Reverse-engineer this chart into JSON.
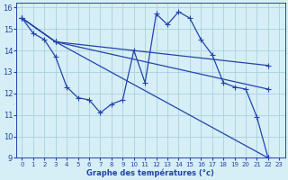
{
  "xlabel": "Graphe des températures (°c)",
  "xlim": [
    -0.5,
    23.5
  ],
  "ylim": [
    9,
    16.2
  ],
  "yticks": [
    9,
    10,
    11,
    12,
    13,
    14,
    15,
    16
  ],
  "xticks": [
    0,
    1,
    2,
    3,
    4,
    5,
    6,
    7,
    8,
    9,
    10,
    11,
    12,
    13,
    14,
    15,
    16,
    17,
    18,
    19,
    20,
    21,
    22,
    23
  ],
  "bg_color": "#d6eef6",
  "grid_color": "#aacfdf",
  "line_color": "#2244aa",
  "figsize": [
    3.2,
    2.0
  ],
  "dpi": 100,
  "curve1": {
    "x": [
      0,
      1,
      2,
      3,
      4,
      5,
      6,
      7,
      8,
      9,
      10,
      11,
      12,
      13,
      14,
      15,
      16,
      17,
      18,
      19,
      20,
      21,
      22
    ],
    "y": [
      15.5,
      14.8,
      14.5,
      13.7,
      12.3,
      11.8,
      11.7,
      11.1,
      11.5,
      11.7,
      14.0,
      12.5,
      15.7,
      15.2,
      15.8,
      15.5,
      14.5,
      13.8,
      12.5,
      12.3,
      12.2,
      10.9,
      9.0
    ]
  },
  "line1": {
    "x": [
      0,
      3,
      22
    ],
    "y": [
      15.5,
      14.4,
      13.3
    ]
  },
  "line2": {
    "x": [
      0,
      3,
      22
    ],
    "y": [
      15.5,
      14.4,
      12.2
    ]
  },
  "line3": {
    "x": [
      0,
      3,
      22
    ],
    "y": [
      15.5,
      14.4,
      9.0
    ]
  }
}
